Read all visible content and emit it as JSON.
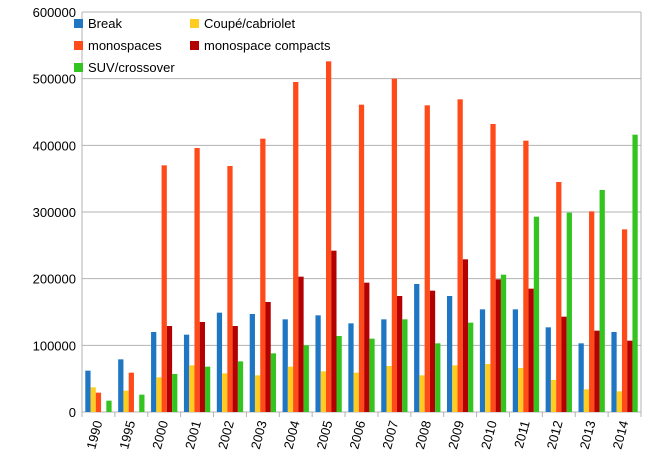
{
  "chart_data": {
    "type": "bar",
    "title": "",
    "xlabel": "",
    "ylabel": "",
    "ylim": [
      0,
      600000
    ],
    "yticks": [
      0,
      100000,
      200000,
      300000,
      400000,
      500000,
      600000
    ],
    "grid": true,
    "legend_position": "top-left",
    "categories": [
      "1990",
      "1995",
      "2000",
      "2001",
      "2002",
      "2003",
      "2004",
      "2005",
      "2006",
      "2007",
      "2008",
      "2009",
      "2010",
      "2011",
      "2012",
      "2013",
      "2014"
    ],
    "series": [
      {
        "name": "Break",
        "color": "#1f77c4",
        "values": [
          62000,
          79000,
          120000,
          116000,
          149000,
          147000,
          139000,
          145000,
          133000,
          139000,
          192000,
          174000,
          154000,
          154000,
          127000,
          103000,
          120000
        ]
      },
      {
        "name": "Coupé/cabriolet",
        "color": "#ffcc22",
        "values": [
          37000,
          32000,
          52000,
          70000,
          58000,
          55000,
          68000,
          61000,
          59000,
          69000,
          55000,
          70000,
          72000,
          66000,
          48000,
          34000,
          31000
        ]
      },
      {
        "name": "monospaces",
        "color": "#ff4a1a",
        "values": [
          29000,
          59000,
          370000,
          396000,
          369000,
          410000,
          495000,
          526000,
          461000,
          500000,
          460000,
          469000,
          432000,
          407000,
          345000,
          301000,
          274000
        ]
      },
      {
        "name": "monospace compacts",
        "color": "#b30000",
        "values": [
          0,
          0,
          129000,
          135000,
          129000,
          165000,
          203000,
          242000,
          194000,
          174000,
          182000,
          229000,
          199000,
          185000,
          143000,
          122000,
          107000
        ]
      },
      {
        "name": "SUV/crossover",
        "color": "#33c41f",
        "values": [
          17000,
          26000,
          57000,
          68000,
          76000,
          88000,
          100000,
          114000,
          110000,
          139000,
          103000,
          134000,
          206000,
          293000,
          299000,
          333000,
          416000
        ]
      }
    ]
  }
}
